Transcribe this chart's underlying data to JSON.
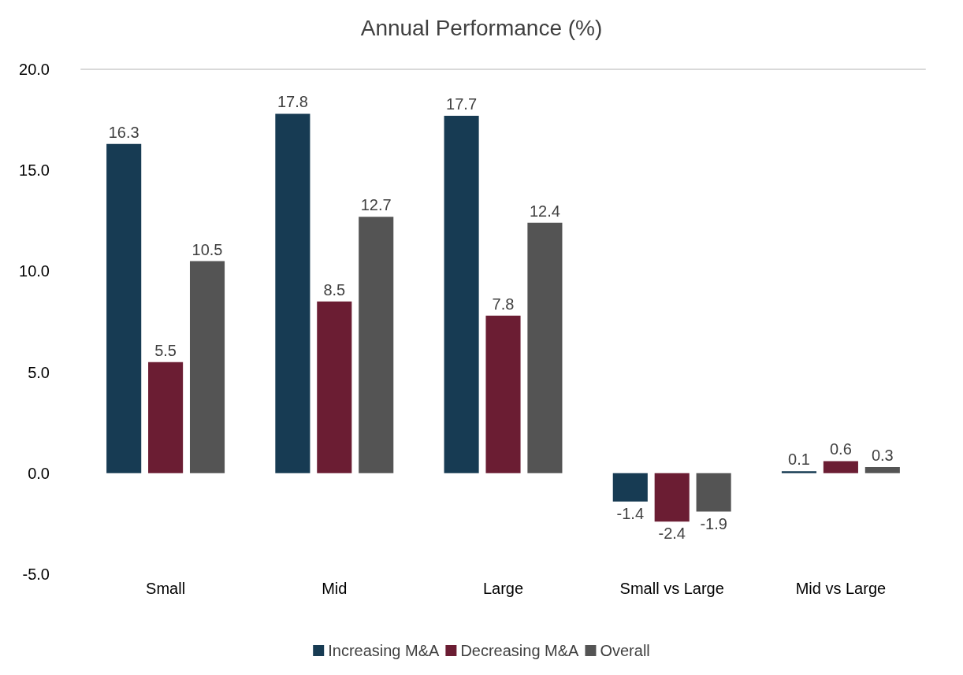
{
  "chart_data": {
    "type": "bar",
    "title": "Annual Performance (%)",
    "categories": [
      "Small",
      "Mid",
      "Large",
      "Small vs Large",
      "Mid vs Large"
    ],
    "series": [
      {
        "name": "Increasing M&A",
        "color": "#173b53",
        "values": [
          16.3,
          17.8,
          17.7,
          -1.4,
          0.1
        ]
      },
      {
        "name": "Decreasing M&A",
        "color": "#6b1d33",
        "values": [
          5.5,
          8.5,
          7.8,
          -2.4,
          0.6
        ]
      },
      {
        "name": "Overall",
        "color": "#545454",
        "values": [
          10.5,
          12.7,
          12.4,
          -1.9,
          0.3
        ]
      }
    ],
    "ylim": [
      -5,
      20
    ],
    "yticks": [
      {
        "value": -5,
        "label": "-5.0"
      },
      {
        "value": 0,
        "label": "0.0"
      },
      {
        "value": 5,
        "label": "5.0"
      },
      {
        "value": 10,
        "label": "10.0"
      },
      {
        "value": 15,
        "label": "15.0"
      },
      {
        "value": 20,
        "label": "20.0"
      }
    ],
    "grid": false,
    "legend": "bottom",
    "data_labels": true
  }
}
